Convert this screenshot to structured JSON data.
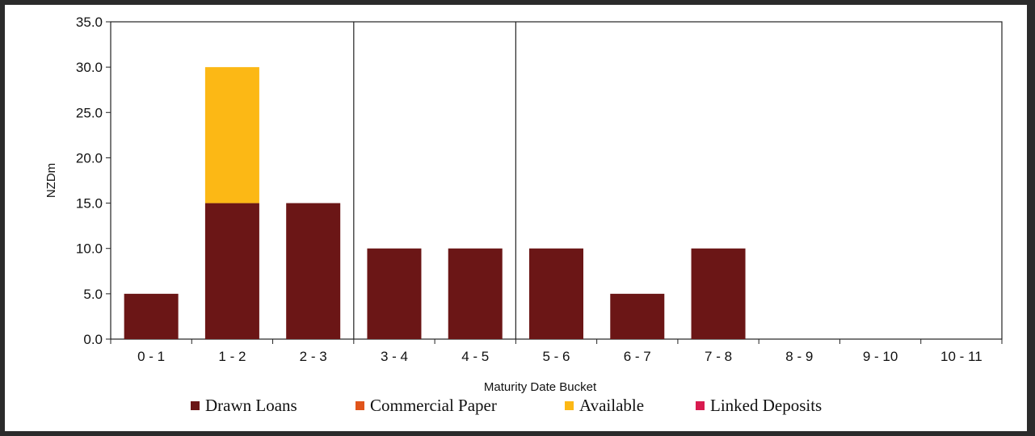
{
  "chart_data": {
    "type": "bar",
    "stacked": true,
    "title": "",
    "xlabel": "Maturity Date Bucket",
    "ylabel": "NZDm",
    "ylim": [
      0,
      35
    ],
    "yticks": [
      "0.0",
      "5.0",
      "10.0",
      "15.0",
      "20.0",
      "25.0",
      "30.0",
      "35.0"
    ],
    "categories": [
      "0 - 1",
      "1 - 2",
      "2 - 3",
      "3 - 4",
      "4 - 5",
      "5 - 6",
      "6 - 7",
      "7 - 8",
      "8 - 9",
      "9 - 10",
      "10 - 11"
    ],
    "series": [
      {
        "name": "Drawn Loans",
        "color": "#6b1616",
        "values": [
          5,
          15,
          15,
          10,
          10,
          10,
          5,
          10,
          0,
          0,
          0
        ]
      },
      {
        "name": "Commercial Paper",
        "color": "#e0541b",
        "values": [
          0,
          0,
          0,
          0,
          0,
          0,
          0,
          0,
          0,
          0,
          0
        ]
      },
      {
        "name": "Available",
        "color": "#fcb815",
        "values": [
          0,
          15,
          0,
          0,
          0,
          0,
          0,
          0,
          0,
          0,
          0
        ]
      },
      {
        "name": "Linked Deposits",
        "color": "#d81b4f",
        "values": [
          0,
          0,
          0,
          0,
          0,
          0,
          0,
          0,
          0,
          0,
          0
        ]
      }
    ],
    "separators_after_category": [
      "2 - 3",
      "4 - 5"
    ],
    "grid": false,
    "legend_position": "bottom"
  }
}
